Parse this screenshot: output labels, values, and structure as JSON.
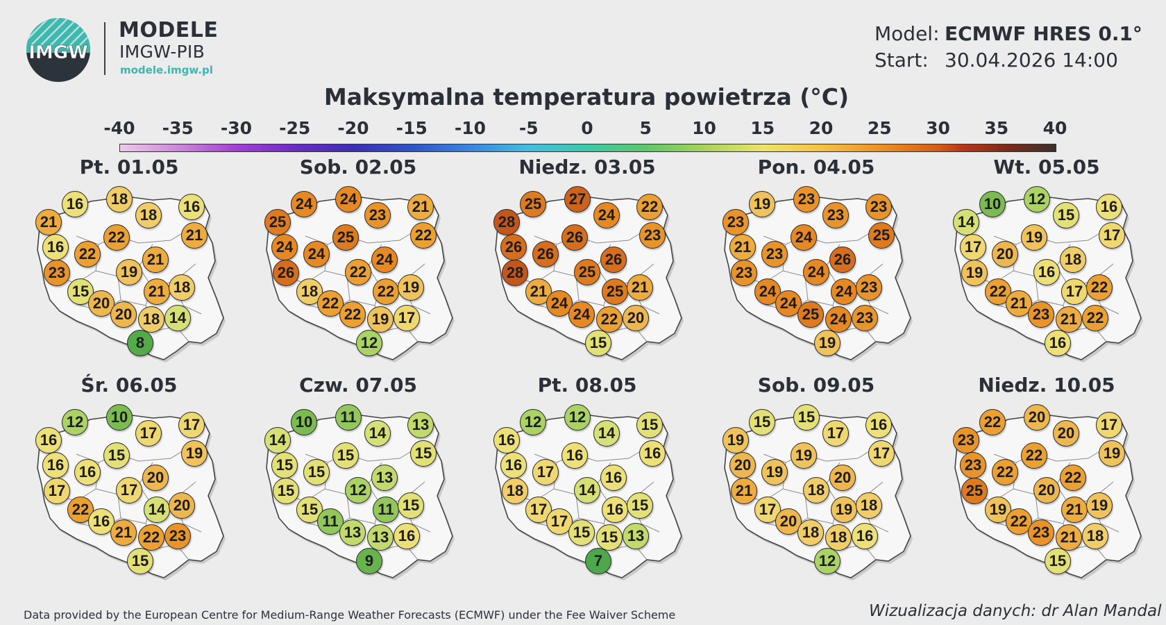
{
  "header": {
    "logo_text": "IMGW",
    "brand_title": "MODELE",
    "brand_subtitle": "IMGW-PIB",
    "brand_url": "modele.imgw.pl",
    "model_label": "Model:",
    "model_value": "ECMWF HRES 0.1°",
    "start_label": "Start:",
    "start_value": "30.04.2026 14:00"
  },
  "title": "Maksymalna temperatura powietrza (°C)",
  "colorbar": {
    "ticks": [
      "-40",
      "-35",
      "-30",
      "-25",
      "-20",
      "-15",
      "-10",
      "-5",
      "0",
      "5",
      "10",
      "15",
      "20",
      "25",
      "30",
      "35",
      "40"
    ],
    "min": -40,
    "max": 40
  },
  "days": [
    {
      "label": "Pt. 01.05",
      "temps": [
        16,
        18,
        16,
        21,
        18,
        21,
        16,
        22,
        22,
        21,
        23,
        19,
        21,
        18,
        15,
        20,
        20,
        18,
        14,
        8
      ]
    },
    {
      "label": "Sob. 02.05",
      "temps": [
        24,
        24,
        21,
        25,
        23,
        22,
        24,
        24,
        25,
        24,
        26,
        22,
        22,
        19,
        18,
        22,
        22,
        19,
        17,
        12
      ]
    },
    {
      "label": "Niedz. 03.05",
      "temps": [
        25,
        27,
        22,
        28,
        24,
        23,
        26,
        26,
        26,
        26,
        28,
        25,
        25,
        21,
        21,
        24,
        24,
        22,
        20,
        15
      ]
    },
    {
      "label": "Pon. 04.05",
      "temps": [
        19,
        23,
        23,
        23,
        23,
        25,
        21,
        23,
        24,
        26,
        23,
        24,
        24,
        23,
        24,
        24,
        25,
        24,
        23,
        19
      ]
    },
    {
      "label": "Wt. 05.05",
      "temps": [
        10,
        12,
        16,
        14,
        15,
        17,
        17,
        20,
        19,
        18,
        19,
        16,
        17,
        22,
        22,
        21,
        23,
        21,
        22,
        16
      ]
    },
    {
      "label": "Śr. 06.05",
      "temps": [
        12,
        10,
        17,
        16,
        17,
        19,
        16,
        16,
        15,
        20,
        17,
        17,
        14,
        20,
        22,
        16,
        21,
        22,
        23,
        15
      ]
    },
    {
      "label": "Czw. 07.05",
      "temps": [
        10,
        11,
        13,
        14,
        14,
        15,
        15,
        15,
        15,
        13,
        15,
        12,
        11,
        15,
        15,
        11,
        13,
        13,
        16,
        9
      ]
    },
    {
      "label": "Pt. 08.05",
      "temps": [
        12,
        12,
        15,
        16,
        14,
        16,
        16,
        17,
        16,
        16,
        18,
        14,
        16,
        15,
        17,
        17,
        15,
        15,
        13,
        7
      ]
    },
    {
      "label": "Sob. 09.05",
      "temps": [
        15,
        15,
        16,
        19,
        17,
        17,
        20,
        19,
        19,
        20,
        21,
        18,
        19,
        18,
        17,
        20,
        18,
        18,
        16,
        12
      ]
    },
    {
      "label": "Niedz. 10.05",
      "temps": [
        22,
        20,
        17,
        23,
        20,
        19,
        23,
        22,
        22,
        22,
        25,
        20,
        21,
        19,
        19,
        22,
        23,
        21,
        18,
        15
      ]
    }
  ],
  "footer": {
    "left": "Data provided by the European Centre for Medium-Range Weather Forecasts (ECMWF) under the Fee Waiver Scheme",
    "right": "Wizualizacja danych: dr Alan Mandal"
  }
}
